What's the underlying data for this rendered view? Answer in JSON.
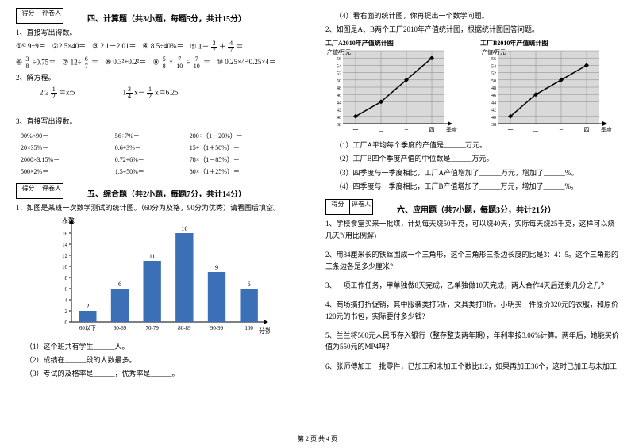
{
  "left": {
    "score_labels": [
      "得分",
      "评卷人"
    ],
    "section4_title": "四、计算题（共3小题，每题5分，共计15分）",
    "q1_title": "1、直接写出得数。",
    "q1_items": [
      "①9.9÷9＝",
      "②2.5×40＝",
      "③ 2.1－2.01＝",
      "④ 8.5÷40%＝",
      "⑤ 1－",
      "＋",
      "＝",
      "⑥",
      "÷0.75＝",
      "⑦ 12÷",
      "＝",
      "⑧ 0.3²+0.2²＝",
      "⑨",
      "×",
      "÷",
      "＝",
      "⑩ 0.25×4÷0.25×4＝"
    ],
    "fr": {
      "a": {
        "n": "3",
        "d": "7"
      },
      "b": {
        "n": "4",
        "d": "7"
      },
      "c": {
        "n": "3",
        "d": "8"
      },
      "d": {
        "n": "6",
        "d": "7"
      },
      "e": {
        "n": "5",
        "d": "8"
      },
      "f": {
        "n": "7",
        "d": "10"
      }
    },
    "q2_title": "2、解方程。",
    "q2_items_a": "2:2",
    "q2_items_b": "＝x:5",
    "q2_items_c": "x－",
    "q2_items_d": "x＝6.25",
    "fr2a": {
      "n": "1",
      "d": "2"
    },
    "fr2b": {
      "n": "3",
      "d": "4"
    },
    "fr2c": {
      "n": "1",
      "d": "2"
    },
    "q3_title": "3、直接写出得数。",
    "q3_rows": [
      [
        "90%×90＝",
        "56÷7%＝",
        "200÷（1－20%）＝"
      ],
      [
        "20×35%＝",
        "0.6÷3%＝",
        "15÷（1＋50%）＝"
      ],
      [
        "2000×3.15%＝",
        "0.72÷6%＝",
        "78×（1－85%）＝"
      ],
      [
        "500×2%＝",
        "1.5÷50%＝",
        "80×（1＋25%）＝"
      ]
    ],
    "section5_title": "五、综合题（共2小题，每题7分，共计14分）",
    "q5_1_title": "1、如图是某班一次数学测试的统计图。（60分为及格，90分为优秀）请看图后填空。",
    "chart": {
      "ylabel": "人数",
      "xlabel": "分数",
      "ymax": 18,
      "ytick": 2,
      "categories": [
        "60以下",
        "60-69",
        "70-79",
        "80-89",
        "90-99",
        "100"
      ],
      "values": [
        2,
        6,
        11,
        16,
        9,
        6
      ],
      "bar_color": "#3b6fb6",
      "bg": "#ffffff",
      "grid": "#cccccc",
      "axis": "#000000",
      "value_fontsize": 8,
      "tick_fontsize": 7
    },
    "q5_1_sub": [
      "（1）这个班共有学生______人。",
      "（2）成绩在______段的人数最多。",
      "（3）考试的及格率是______，优秀率是______。"
    ]
  },
  "right": {
    "q5_1_4": "（4）看右面的统计图，你再提出一个数学问题。",
    "q5_2_title": "2、如图是A、B两个工厂2010年产值统计图，根据统计图回答问题。",
    "chartA_title": "工厂A2010年产值统计图",
    "chartB_title": "工厂B2010年产值统计图",
    "ylab": "产值/万元",
    "xlab": "季度",
    "yticks": [
      38,
      40,
      42,
      44,
      46,
      48,
      50,
      52,
      54,
      56,
      58
    ],
    "xticks": [
      "一",
      "二",
      "三",
      "四"
    ],
    "seriesA": [
      40,
      44,
      50,
      56
    ],
    "seriesB": [
      40,
      46,
      50,
      54
    ],
    "line_color": "#000000",
    "bg": "#d9d9d9",
    "grid": "#888888",
    "marker": "diamond",
    "q5_2_sub": [
      "（1）工厂A平均每个季度的产值是______万元。",
      "（2）工厂B四个季度产值的中位数是______万元。",
      "（3）四季度与一季度相比，工厂A产值增加了______万元，增加了______%。",
      "（4）四季度与一季度相比，工厂B产值增加了______万元，增加了______%。"
    ],
    "score_labels": [
      "得分",
      "评卷人"
    ],
    "section6_title": "六、应用题（共7小题，每题3分，共计21分）",
    "q6": [
      "1、学校食堂买来一批煤，计划每天烧50千克，可以烧40天，实际每天烧25千克，这样可以烧几天?(用比例解)",
      "2、用84厘米长的铁丝围成一个三角形，这个三角形三条边长度的比是3：4：5。这个三角形的三条边各是多少厘米?",
      "3、一项工作任务，甲单独做8天完成，乙单独做10天完成，两人合作4天后还剩几分之几？",
      "4、商场搞打折促销，其中服装类打5折，文具类打8折。小明买一件原价320元的衣服，和原价120元的书包，实际要付多少钱?",
      "5、兰兰将500元人民币存入银行（整存整支两年期），年利率按3.06%计算。两年后，她能买价值为550元的MP4吗？",
      "6、张师傅加工一批零件，已加工和未加工个数比1:2，如果再加工36个，这时已加工与未加工"
    ]
  },
  "footer": "第 2 页  共 4 页"
}
